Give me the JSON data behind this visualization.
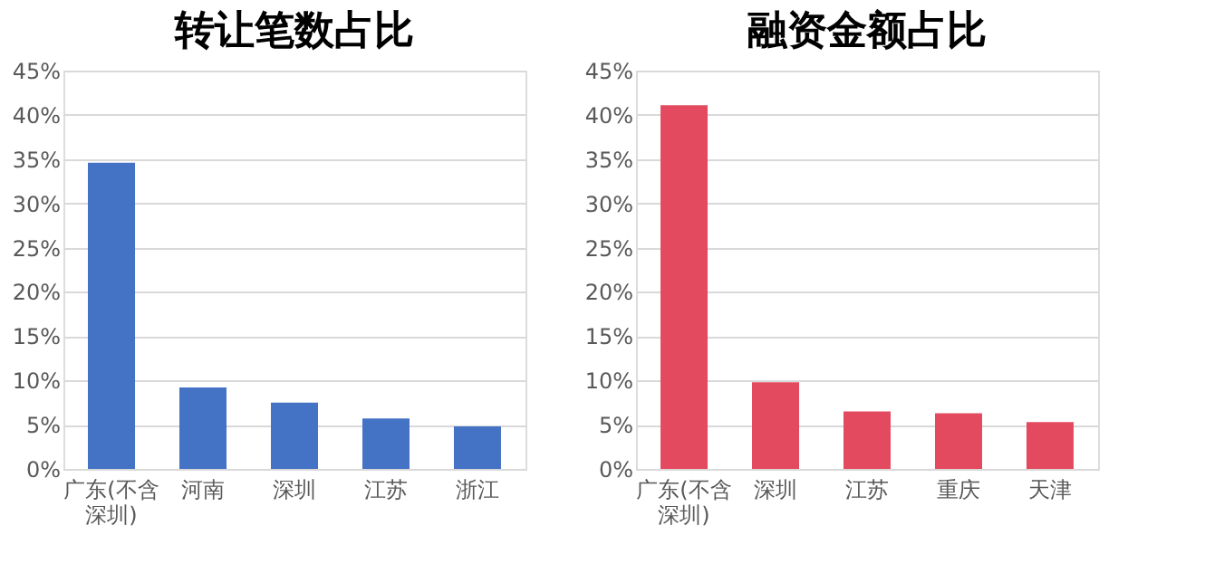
{
  "chart_data": [
    {
      "type": "bar",
      "title": "转让笔数占比",
      "categories": [
        "广东(不含深圳)",
        "河南",
        "深圳",
        "江苏",
        "浙江"
      ],
      "values": [
        34.6,
        9.2,
        7.5,
        5.7,
        4.8
      ],
      "color": "#4472c4",
      "ylim": [
        0,
        45
      ],
      "yticks": [
        {
          "value": 0,
          "label": "0%"
        },
        {
          "value": 5,
          "label": "5%"
        },
        {
          "value": 10,
          "label": "10%"
        },
        {
          "value": 15,
          "label": "15%"
        },
        {
          "value": 20,
          "label": "20%"
        },
        {
          "value": 25,
          "label": "25%"
        },
        {
          "value": 30,
          "label": "30%"
        },
        {
          "value": 35,
          "label": "35%"
        },
        {
          "value": 40,
          "label": "40%"
        },
        {
          "value": 45,
          "label": "45%"
        }
      ],
      "grid": "y"
    },
    {
      "type": "bar",
      "title": "融资金额占比",
      "categories": [
        "广东(不含深圳)",
        "深圳",
        "江苏",
        "重庆",
        "天津"
      ],
      "values": [
        41.1,
        9.8,
        6.5,
        6.3,
        5.3
      ],
      "color": "#e34a5f",
      "ylim": [
        0,
        45
      ],
      "yticks": [
        {
          "value": 0,
          "label": "0%"
        },
        {
          "value": 5,
          "label": "5%"
        },
        {
          "value": 10,
          "label": "10%"
        },
        {
          "value": 15,
          "label": "15%"
        },
        {
          "value": 20,
          "label": "20%"
        },
        {
          "value": 25,
          "label": "25%"
        },
        {
          "value": 30,
          "label": "30%"
        },
        {
          "value": 35,
          "label": "35%"
        },
        {
          "value": 40,
          "label": "40%"
        },
        {
          "value": 45,
          "label": "45%"
        }
      ],
      "grid": "y"
    }
  ]
}
